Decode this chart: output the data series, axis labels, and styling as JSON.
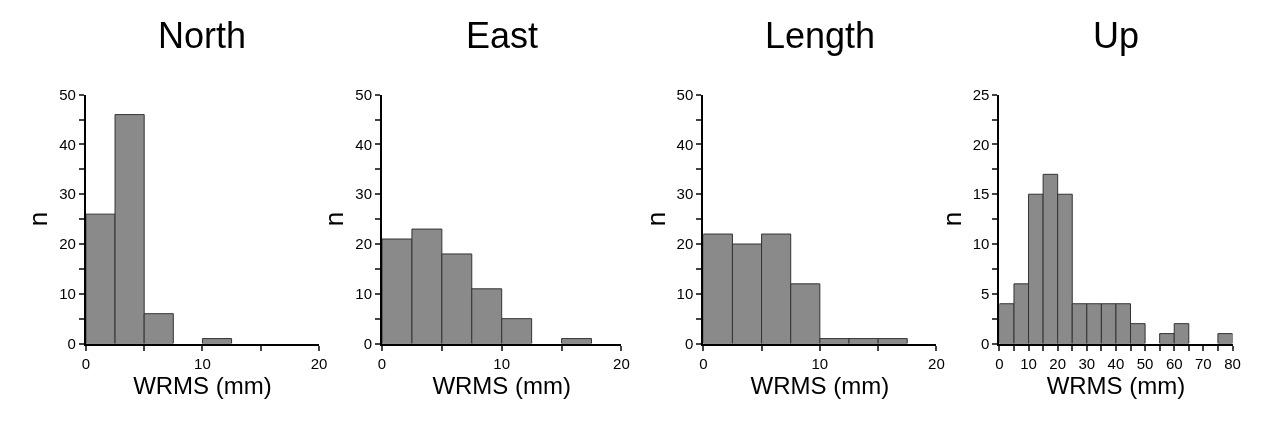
{
  "chart_data": [
    {
      "type": "histogram",
      "title": "North",
      "xlabel": "WRMS (mm)",
      "ylabel": "n",
      "color": "#8a8a8a",
      "bins": [
        0,
        2.5,
        5,
        7.5,
        10,
        12.5,
        15,
        17.5,
        20
      ],
      "values": [
        26,
        46,
        6,
        0,
        1,
        0,
        0,
        0
      ],
      "xlim": [
        0,
        20
      ],
      "xticks": [
        0,
        {
          "value": 5,
          "label": null
        },
        10,
        {
          "value": 15,
          "label": null
        },
        20
      ],
      "ylim": [
        0,
        50
      ],
      "yticks": [
        0,
        {
          "value": 5,
          "label": null
        },
        10,
        {
          "value": 15,
          "label": null
        },
        20,
        {
          "value": 25,
          "label": null
        },
        30,
        {
          "value": 35,
          "label": null
        },
        40,
        {
          "value": 45,
          "label": null
        },
        50
      ]
    },
    {
      "type": "histogram",
      "title": "East",
      "xlabel": "WRMS (mm)",
      "ylabel": "n",
      "color": "#8a8a8a",
      "bins": [
        0,
        2.5,
        5,
        7.5,
        10,
        12.5,
        15,
        17.5,
        20
      ],
      "values": [
        21,
        23,
        18,
        11,
        5,
        0,
        1,
        0
      ],
      "xlim": [
        0,
        20
      ],
      "xticks": [
        0,
        {
          "value": 5,
          "label": null
        },
        10,
        {
          "value": 15,
          "label": null
        },
        20
      ],
      "ylim": [
        0,
        50
      ],
      "yticks": [
        0,
        {
          "value": 5,
          "label": null
        },
        10,
        {
          "value": 15,
          "label": null
        },
        20,
        {
          "value": 25,
          "label": null
        },
        30,
        {
          "value": 35,
          "label": null
        },
        40,
        {
          "value": 45,
          "label": null
        },
        50
      ]
    },
    {
      "type": "histogram",
      "title": "Length",
      "xlabel": "WRMS (mm)",
      "ylabel": "n",
      "color": "#8a8a8a",
      "bins": [
        0,
        2.5,
        5,
        7.5,
        10,
        12.5,
        15,
        17.5,
        20
      ],
      "values": [
        22,
        20,
        22,
        12,
        1,
        1,
        1,
        0
      ],
      "xlim": [
        0,
        20
      ],
      "xticks": [
        0,
        {
          "value": 5,
          "label": null
        },
        10,
        {
          "value": 15,
          "label": null
        },
        20
      ],
      "ylim": [
        0,
        50
      ],
      "yticks": [
        0,
        {
          "value": 5,
          "label": null
        },
        10,
        {
          "value": 15,
          "label": null
        },
        20,
        {
          "value": 25,
          "label": null
        },
        30,
        {
          "value": 35,
          "label": null
        },
        40,
        {
          "value": 45,
          "label": null
        },
        50
      ]
    },
    {
      "type": "histogram",
      "title": "Up",
      "xlabel": "WRMS (mm)",
      "ylabel": "n",
      "color": "#8a8a8a",
      "bins": [
        0,
        5,
        10,
        15,
        20,
        25,
        30,
        35,
        40,
        45,
        50,
        55,
        60,
        65,
        70,
        75,
        80
      ],
      "values": [
        4,
        6,
        15,
        17,
        15,
        4,
        4,
        4,
        4,
        2,
        0,
        1,
        2,
        0,
        0,
        1
      ],
      "xlim": [
        0,
        80
      ],
      "xticks": [
        0,
        {
          "value": 5,
          "label": null
        },
        10,
        {
          "value": 15,
          "label": null
        },
        20,
        {
          "value": 25,
          "label": null
        },
        30,
        {
          "value": 35,
          "label": null
        },
        40,
        {
          "value": 45,
          "label": null
        },
        50,
        {
          "value": 55,
          "label": null
        },
        60,
        {
          "value": 65,
          "label": null
        },
        70,
        {
          "value": 75,
          "label": null
        },
        80
      ],
      "ylim": [
        0,
        25
      ],
      "yticks": [
        0,
        {
          "value": 2.5,
          "label": null
        },
        5,
        {
          "value": 7.5,
          "label": null
        },
        10,
        {
          "value": 12.5,
          "label": null
        },
        15,
        {
          "value": 17.5,
          "label": null
        },
        20,
        {
          "value": 22.5,
          "label": null
        },
        25
      ]
    }
  ]
}
